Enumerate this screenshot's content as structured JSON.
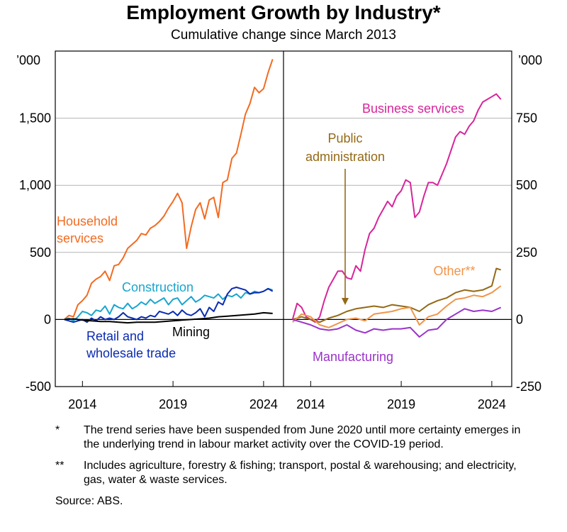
{
  "title": "Employment Growth by Industry*",
  "subtitle": "Cumulative change since March 2013",
  "footnotes": [
    {
      "mark": "*",
      "text": "The trend series have been suspended from June 2020 until more certainty emerges in the underlying trend in labour market activity over the COVID-19 period."
    },
    {
      "mark": "**",
      "text": "Includes agriculture, forestry & fishing; transport, postal & warehousing; and electricity, gas, water & waste services."
    }
  ],
  "source": {
    "label": "Source:",
    "value": "ABS."
  },
  "chart_data": [
    {
      "type": "line",
      "panel": "left",
      "ylabel": "’000",
      "ylim": [
        -500,
        2000
      ],
      "yticks": [
        -500,
        0,
        500,
        1000,
        1500
      ],
      "ytick_labels": [
        "-500",
        "0",
        "500",
        "1,000",
        "1,500"
      ],
      "xlim": [
        2012.5,
        2025.1
      ],
      "xticks": [
        2014,
        2019,
        2024
      ],
      "xtick_labels": [
        "2014",
        "2019",
        "2024"
      ],
      "grid": true,
      "series": [
        {
          "name": "Household services",
          "color": "#f26b21",
          "x": [
            2013.0,
            2013.25,
            2013.5,
            2013.75,
            2014.0,
            2014.25,
            2014.5,
            2014.75,
            2015.0,
            2015.25,
            2015.5,
            2015.75,
            2016.0,
            2016.25,
            2016.5,
            2016.75,
            2017.0,
            2017.25,
            2017.5,
            2017.75,
            2018.0,
            2018.25,
            2018.5,
            2018.75,
            2019.0,
            2019.25,
            2019.5,
            2019.75,
            2020.0,
            2020.25,
            2020.5,
            2020.75,
            2021.0,
            2021.25,
            2021.5,
            2021.75,
            2022.0,
            2022.25,
            2022.5,
            2022.75,
            2023.0,
            2023.25,
            2023.5,
            2023.75,
            2024.0,
            2024.25,
            2024.5
          ],
          "y": [
            0,
            30,
            20,
            110,
            140,
            180,
            270,
            300,
            320,
            360,
            290,
            400,
            410,
            460,
            530,
            560,
            590,
            640,
            630,
            680,
            700,
            730,
            770,
            830,
            880,
            940,
            870,
            530,
            690,
            820,
            870,
            750,
            890,
            910,
            760,
            1020,
            1040,
            1200,
            1240,
            1380,
            1530,
            1610,
            1730,
            1690,
            1720,
            1840,
            1940
          ]
        },
        {
          "name": "Construction",
          "color": "#19a5cf",
          "x": [
            2013.0,
            2013.25,
            2013.5,
            2013.75,
            2014.0,
            2014.25,
            2014.5,
            2014.75,
            2015.0,
            2015.25,
            2015.5,
            2015.75,
            2016.0,
            2016.25,
            2016.5,
            2016.75,
            2017.0,
            2017.25,
            2017.5,
            2017.75,
            2018.0,
            2018.25,
            2018.5,
            2018.75,
            2019.0,
            2019.25,
            2019.5,
            2019.75,
            2020.0,
            2020.25,
            2020.5,
            2020.75,
            2021.0,
            2021.25,
            2021.5,
            2021.75,
            2022.0,
            2022.25,
            2022.5,
            2022.75,
            2023.0,
            2023.25,
            2023.5,
            2023.75,
            2024.0,
            2024.25,
            2024.5
          ],
          "y": [
            0,
            10,
            -10,
            20,
            60,
            50,
            30,
            70,
            60,
            100,
            40,
            110,
            90,
            80,
            120,
            80,
            100,
            130,
            110,
            150,
            120,
            140,
            160,
            110,
            150,
            160,
            110,
            140,
            170,
            130,
            150,
            180,
            170,
            160,
            190,
            150,
            180,
            170,
            190,
            160,
            200,
            190,
            210,
            200,
            210,
            230,
            220
          ]
        },
        {
          "name": "Retail and wholesale trade",
          "color": "#0a2bb0",
          "x": [
            2013.0,
            2013.25,
            2013.5,
            2013.75,
            2014.0,
            2014.25,
            2014.5,
            2014.75,
            2015.0,
            2015.25,
            2015.5,
            2015.75,
            2016.0,
            2016.25,
            2016.5,
            2016.75,
            2017.0,
            2017.25,
            2017.5,
            2017.75,
            2018.0,
            2018.25,
            2018.5,
            2018.75,
            2019.0,
            2019.25,
            2019.5,
            2019.75,
            2020.0,
            2020.25,
            2020.5,
            2020.75,
            2021.0,
            2021.25,
            2021.5,
            2021.75,
            2022.0,
            2022.25,
            2022.5,
            2022.75,
            2023.0,
            2023.25,
            2023.5,
            2023.75,
            2024.0,
            2024.25,
            2024.5
          ],
          "y": [
            0,
            -10,
            -20,
            -10,
            0,
            -20,
            10,
            -10,
            20,
            0,
            10,
            0,
            20,
            50,
            20,
            10,
            0,
            20,
            10,
            30,
            20,
            60,
            50,
            40,
            60,
            30,
            70,
            40,
            30,
            50,
            80,
            20,
            90,
            60,
            130,
            110,
            190,
            230,
            240,
            230,
            220,
            190,
            200,
            200,
            210,
            230,
            210
          ]
        },
        {
          "name": "Mining",
          "color": "#000000",
          "x": [
            2013.0,
            2013.5,
            2014.0,
            2014.5,
            2015.0,
            2015.5,
            2016.0,
            2016.5,
            2017.0,
            2017.5,
            2018.0,
            2018.5,
            2019.0,
            2019.5,
            2020.0,
            2020.5,
            2021.0,
            2021.5,
            2022.0,
            2022.5,
            2023.0,
            2023.5,
            2024.0,
            2024.5
          ],
          "y": [
            0,
            5,
            -5,
            -10,
            -15,
            -15,
            -20,
            -25,
            -20,
            -20,
            -20,
            -15,
            -10,
            -5,
            0,
            5,
            10,
            20,
            25,
            30,
            35,
            40,
            50,
            45
          ]
        }
      ],
      "annotations": [
        {
          "text": "Household services",
          "lines": [
            "Household",
            "services"
          ],
          "color": "#f26b21"
        },
        {
          "text": "Construction",
          "lines": [
            "Construction"
          ],
          "color": "#19a5cf"
        },
        {
          "text": "Retail and wholesale trade",
          "lines": [
            "Retail and",
            "wholesale trade"
          ],
          "color": "#0a2bb0"
        },
        {
          "text": "Mining",
          "lines": [
            "Mining"
          ],
          "color": "#000000"
        }
      ]
    },
    {
      "type": "line",
      "panel": "right",
      "ylabel": "’000",
      "ylim": [
        -250,
        1000
      ],
      "yticks": [
        -250,
        0,
        250,
        500,
        750
      ],
      "ytick_labels": [
        "-250",
        "0",
        "250",
        "500",
        "750"
      ],
      "xlim": [
        2012.5,
        2025.1
      ],
      "xticks": [
        2014,
        2019,
        2024
      ],
      "xtick_labels": [
        "2014",
        "2019",
        "2024"
      ],
      "grid": true,
      "series": [
        {
          "name": "Business services",
          "color": "#d7259b",
          "x": [
            2013.0,
            2013.25,
            2013.5,
            2013.75,
            2014.0,
            2014.25,
            2014.5,
            2014.75,
            2015.0,
            2015.25,
            2015.5,
            2015.75,
            2016.0,
            2016.25,
            2016.5,
            2016.75,
            2017.0,
            2017.25,
            2017.5,
            2017.75,
            2018.0,
            2018.25,
            2018.5,
            2018.75,
            2019.0,
            2019.25,
            2019.5,
            2019.75,
            2020.0,
            2020.25,
            2020.5,
            2020.75,
            2021.0,
            2021.25,
            2021.5,
            2021.75,
            2022.0,
            2022.25,
            2022.5,
            2022.75,
            2023.0,
            2023.25,
            2023.5,
            2023.75,
            2024.0,
            2024.25,
            2024.5
          ],
          "y": [
            0,
            60,
            45,
            10,
            0,
            -10,
            10,
            70,
            120,
            150,
            180,
            180,
            155,
            150,
            200,
            180,
            260,
            320,
            340,
            380,
            410,
            440,
            420,
            460,
            480,
            520,
            510,
            380,
            400,
            460,
            510,
            510,
            500,
            540,
            580,
            630,
            680,
            700,
            690,
            720,
            740,
            780,
            810,
            820,
            830,
            840,
            820
          ]
        },
        {
          "name": "Public administration",
          "color": "#946916",
          "x": [
            2013.0,
            2013.5,
            2014.0,
            2014.5,
            2015.0,
            2015.5,
            2016.0,
            2016.5,
            2017.0,
            2017.5,
            2018.0,
            2018.5,
            2019.0,
            2019.5,
            2020.0,
            2020.5,
            2021.0,
            2021.5,
            2022.0,
            2022.5,
            2023.0,
            2023.5,
            2024.0,
            2024.25,
            2024.5
          ],
          "y": [
            0,
            10,
            0,
            -10,
            5,
            15,
            30,
            40,
            45,
            50,
            45,
            55,
            50,
            45,
            30,
            55,
            70,
            80,
            100,
            110,
            105,
            110,
            125,
            190,
            185
          ]
        },
        {
          "name": "Other**",
          "color": "#f0954b",
          "x": [
            2013.0,
            2013.5,
            2014.0,
            2014.5,
            2015.0,
            2015.5,
            2016.0,
            2016.5,
            2017.0,
            2017.5,
            2018.0,
            2018.5,
            2019.0,
            2019.5,
            2020.0,
            2020.5,
            2021.0,
            2021.5,
            2022.0,
            2022.5,
            2023.0,
            2023.5,
            2024.0,
            2024.5
          ],
          "y": [
            -10,
            20,
            10,
            -20,
            -30,
            -15,
            0,
            5,
            -5,
            20,
            25,
            30,
            40,
            45,
            -20,
            10,
            20,
            50,
            75,
            80,
            90,
            85,
            100,
            125
          ]
        },
        {
          "name": "Manufacturing",
          "color": "#9a33c9",
          "x": [
            2013.0,
            2013.5,
            2014.0,
            2014.5,
            2015.0,
            2015.5,
            2016.0,
            2016.5,
            2017.0,
            2017.5,
            2018.0,
            2018.5,
            2019.0,
            2019.5,
            2020.0,
            2020.5,
            2021.0,
            2021.5,
            2022.0,
            2022.5,
            2023.0,
            2023.5,
            2024.0,
            2024.5
          ],
          "y": [
            0,
            -10,
            -20,
            -35,
            -40,
            -35,
            -20,
            -40,
            -50,
            -35,
            -40,
            -35,
            -35,
            -30,
            -65,
            -40,
            -35,
            0,
            20,
            40,
            30,
            35,
            30,
            45
          ]
        }
      ],
      "annotations": [
        {
          "text": "Business services",
          "lines": [
            "Business services"
          ],
          "color": "#d7259b"
        },
        {
          "text": "Public administration",
          "lines": [
            "Public",
            "administration"
          ],
          "color": "#946916"
        },
        {
          "text": "Other**",
          "lines": [
            "Other**"
          ],
          "color": "#f0954b"
        },
        {
          "text": "Manufacturing",
          "lines": [
            "Manufacturing"
          ],
          "color": "#9a33c9"
        }
      ]
    }
  ]
}
